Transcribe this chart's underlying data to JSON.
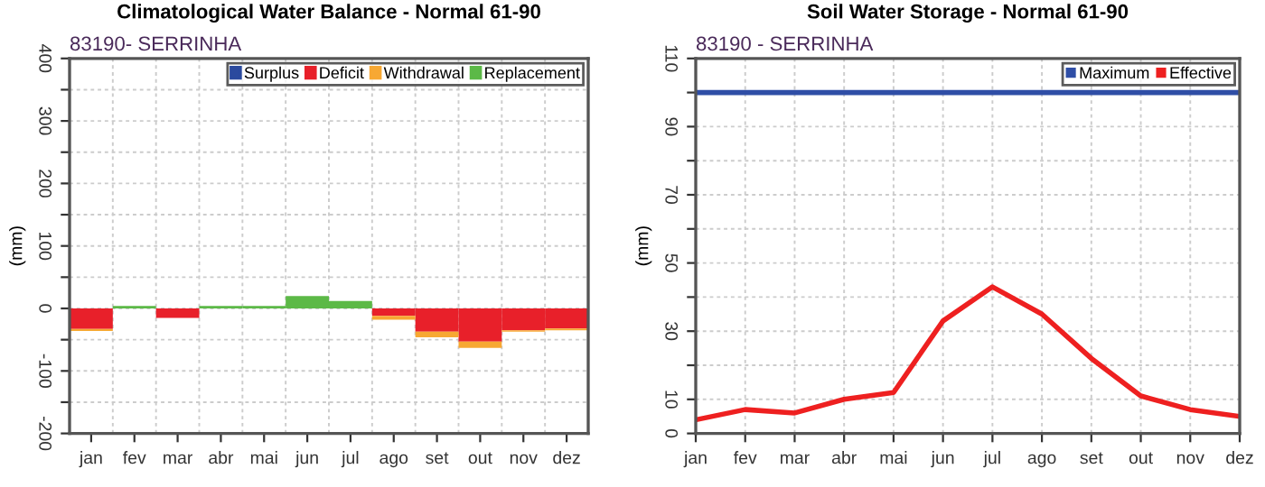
{
  "chart_data": [
    {
      "type": "bar",
      "title": "Climatological Water Balance - Normal 61-90",
      "subtitle": "83190- SERRINHA",
      "ylabel": "(mm)",
      "stacked": true,
      "categories": [
        "jan",
        "fev",
        "mar",
        "abr",
        "mai",
        "jun",
        "jul",
        "ago",
        "set",
        "out",
        "nov",
        "dez"
      ],
      "series": [
        {
          "name": "Surplus",
          "color": "#2b4a9e",
          "values": [
            0,
            0,
            0,
            0,
            0,
            0,
            0,
            0,
            0,
            0,
            0,
            0
          ]
        },
        {
          "name": "Deficit",
          "color": "#e8202a",
          "values": [
            -33,
            0,
            -15,
            0,
            0,
            0,
            0,
            -12,
            -37,
            -53,
            -35,
            -32
          ]
        },
        {
          "name": "Withdrawal",
          "color": "#f7a833",
          "values": [
            -3,
            0,
            0,
            0,
            0,
            0,
            0,
            -6,
            -9,
            -10,
            -2,
            -3
          ]
        },
        {
          "name": "Replacement",
          "color": "#5cb947",
          "values": [
            0,
            4,
            0,
            4,
            4,
            20,
            12,
            0,
            0,
            0,
            0,
            0
          ]
        }
      ],
      "ylim": [
        -200,
        400
      ],
      "yticks": [
        -200,
        {
          "value": -150,
          "label": null
        },
        -100,
        {
          "value": -50,
          "label": null
        },
        0,
        {
          "value": 50,
          "label": null
        },
        100,
        {
          "value": 150,
          "label": null
        },
        200,
        {
          "value": 250,
          "label": null
        },
        300,
        {
          "value": 350,
          "label": null
        },
        400
      ],
      "grid": true,
      "legend": "top right"
    },
    {
      "type": "line",
      "title": "Soil Water Storage - Normal 61-90",
      "subtitle": "83190 - SERRINHA",
      "ylabel": "(mm)",
      "categories": [
        "jan",
        "fev",
        "mar",
        "abr",
        "mai",
        "jun",
        "jul",
        "ago",
        "set",
        "out",
        "nov",
        "dez"
      ],
      "series": [
        {
          "name": "Maximum",
          "color": "#2f4ea6",
          "values": [
            100,
            100,
            100,
            100,
            100,
            100,
            100,
            100,
            100,
            100,
            100,
            100
          ]
        },
        {
          "name": "Effective",
          "color": "#ee2020",
          "values": [
            4,
            7,
            6,
            10,
            12,
            33,
            43,
            35,
            22,
            11,
            7,
            5
          ]
        }
      ],
      "ylim": [
        0,
        110
      ],
      "yticks": [
        0,
        10,
        {
          "value": 20,
          "label": null
        },
        30,
        {
          "value": 40,
          "label": null
        },
        50,
        {
          "value": 60,
          "label": null
        },
        70,
        {
          "value": 80,
          "label": null
        },
        90,
        {
          "value": 100,
          "label": null
        },
        110
      ],
      "grid": true,
      "legend": "top right",
      "line_style": "solid",
      "marker": "none"
    }
  ]
}
